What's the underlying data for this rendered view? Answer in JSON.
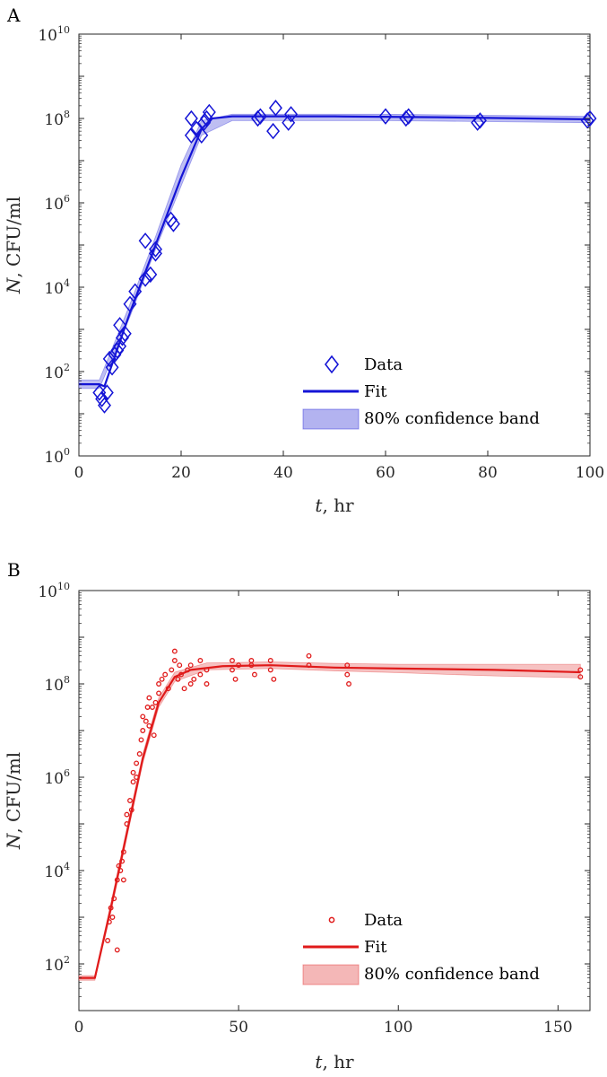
{
  "chart_data": [
    {
      "panel": "A",
      "type": "scatter",
      "color": "#1414d6",
      "band_fill": "#b3b3f0",
      "marker": "diamond",
      "xlabel_var": "t",
      "xlabel_rest": ", hr",
      "ylabel_var": "N",
      "ylabel_rest": ", CFU/ml",
      "xlim": [
        0,
        100
      ],
      "ylim_log10": [
        0,
        10
      ],
      "xticks": [
        0,
        20,
        40,
        60,
        80,
        100
      ],
      "ytick_exponents": [
        0,
        2,
        4,
        6,
        8,
        10
      ],
      "ytick_base": "10",
      "legend": {
        "data": "Data",
        "fit": "Fit",
        "band": "80% confidence band"
      },
      "data_points_log10": [
        [
          4,
          1.5
        ],
        [
          4.5,
          1.35
        ],
        [
          5,
          1.2
        ],
        [
          5.5,
          1.5
        ],
        [
          6,
          2.3
        ],
        [
          6.5,
          2.1
        ],
        [
          7,
          2.4
        ],
        [
          7.5,
          2.5
        ],
        [
          8,
          2.6
        ],
        [
          8,
          3.1
        ],
        [
          8.5,
          2.8
        ],
        [
          9,
          2.9
        ],
        [
          10,
          3.6
        ],
        [
          11,
          3.9
        ],
        [
          13,
          4.2
        ],
        [
          13,
          5.1
        ],
        [
          14,
          4.3
        ],
        [
          15,
          4.8
        ],
        [
          15,
          4.9
        ],
        [
          18,
          5.6
        ],
        [
          18.5,
          5.5
        ],
        [
          22,
          7.6
        ],
        [
          22,
          8.0
        ],
        [
          23,
          7.75
        ],
        [
          24,
          7.6
        ],
        [
          24.5,
          7.9
        ],
        [
          25,
          8.0
        ],
        [
          25.5,
          8.15
        ],
        [
          35,
          8.0
        ],
        [
          35.5,
          8.05
        ],
        [
          38,
          7.7
        ],
        [
          38.5,
          8.25
        ],
        [
          41,
          7.9
        ],
        [
          41.5,
          8.1
        ],
        [
          60,
          8.05
        ],
        [
          64,
          8.0
        ],
        [
          64.5,
          8.05
        ],
        [
          78,
          7.9
        ],
        [
          78.5,
          7.95
        ],
        [
          99.5,
          7.95
        ],
        [
          100,
          8.0
        ]
      ],
      "fit_log10": [
        [
          0,
          1.7
        ],
        [
          4,
          1.7
        ],
        [
          5,
          1.65
        ],
        [
          10,
          3.4
        ],
        [
          15,
          5.0
        ],
        [
          20,
          6.6
        ],
        [
          24,
          7.75
        ],
        [
          26,
          8.0
        ],
        [
          30,
          8.05
        ],
        [
          50,
          8.05
        ],
        [
          70,
          8.03
        ],
        [
          100,
          7.98
        ]
      ],
      "band_log10": [
        [
          0,
          1.6,
          1.8
        ],
        [
          4,
          1.6,
          1.8
        ],
        [
          10,
          3.3,
          3.6
        ],
        [
          15,
          4.9,
          5.2
        ],
        [
          20,
          6.4,
          6.9
        ],
        [
          24,
          7.6,
          7.95
        ],
        [
          30,
          7.95,
          8.1
        ],
        [
          60,
          7.95,
          8.1
        ],
        [
          100,
          7.9,
          8.05
        ]
      ]
    },
    {
      "panel": "B",
      "type": "scatter",
      "color": "#e01a1a",
      "band_fill": "#f4b7b7",
      "marker": "circle",
      "xlabel_var": "t",
      "xlabel_rest": ", hr",
      "ylabel_var": "N",
      "ylabel_rest": ", CFU/ml",
      "xlim": [
        0,
        160
      ],
      "ylim_log10": [
        1,
        10
      ],
      "xticks": [
        0,
        50,
        100,
        150
      ],
      "ytick_exponents": [
        2,
        4,
        6,
        8,
        10
      ],
      "ytick_base": "10",
      "legend": {
        "data": "Data",
        "fit": "Fit",
        "band": "80% confidence band"
      },
      "data_points_log10": [
        [
          9,
          2.5
        ],
        [
          9.5,
          2.9
        ],
        [
          10,
          3.2
        ],
        [
          10.5,
          3.0
        ],
        [
          11,
          3.4
        ],
        [
          12,
          2.3
        ],
        [
          12,
          3.8
        ],
        [
          12.5,
          4.1
        ],
        [
          13,
          4.0
        ],
        [
          13.5,
          4.2
        ],
        [
          14,
          3.8
        ],
        [
          14,
          4.4
        ],
        [
          15,
          5.0
        ],
        [
          15,
          5.2
        ],
        [
          16,
          5.5
        ],
        [
          16.5,
          5.3
        ],
        [
          17,
          5.9
        ],
        [
          17,
          6.1
        ],
        [
          18,
          6.0
        ],
        [
          18,
          6.3
        ],
        [
          19,
          6.5
        ],
        [
          19.5,
          6.8
        ],
        [
          20,
          7.0
        ],
        [
          20,
          7.3
        ],
        [
          21,
          7.2
        ],
        [
          21.5,
          7.5
        ],
        [
          22,
          7.1
        ],
        [
          22,
          7.7
        ],
        [
          23,
          7.5
        ],
        [
          23.5,
          6.9
        ],
        [
          24,
          7.6
        ],
        [
          25,
          7.8
        ],
        [
          25,
          8.0
        ],
        [
          26,
          8.1
        ],
        [
          27,
          8.2
        ],
        [
          28,
          7.9
        ],
        [
          29,
          8.3
        ],
        [
          30,
          8.5
        ],
        [
          30,
          8.7
        ],
        [
          31,
          8.1
        ],
        [
          31.5,
          8.4
        ],
        [
          32,
          8.2
        ],
        [
          33,
          7.9
        ],
        [
          34,
          8.3
        ],
        [
          35,
          8.0
        ],
        [
          35,
          8.4
        ],
        [
          36,
          8.1
        ],
        [
          38,
          8.2
        ],
        [
          38,
          8.5
        ],
        [
          40,
          8.3
        ],
        [
          40,
          8.0
        ],
        [
          48,
          8.3
        ],
        [
          48,
          8.5
        ],
        [
          49,
          8.1
        ],
        [
          50,
          8.4
        ],
        [
          54,
          8.4
        ],
        [
          54,
          8.5
        ],
        [
          55,
          8.2
        ],
        [
          60,
          8.3
        ],
        [
          60,
          8.5
        ],
        [
          61,
          8.1
        ],
        [
          72,
          8.4
        ],
        [
          72,
          8.6
        ],
        [
          84,
          8.2
        ],
        [
          84,
          8.4
        ],
        [
          84.5,
          8.0
        ],
        [
          157,
          8.3
        ],
        [
          157,
          8.15
        ]
      ],
      "fit_log10": [
        [
          0,
          1.7
        ],
        [
          5,
          1.7
        ],
        [
          10,
          3.2
        ],
        [
          15,
          4.8
        ],
        [
          20,
          6.4
        ],
        [
          25,
          7.6
        ],
        [
          30,
          8.15
        ],
        [
          35,
          8.3
        ],
        [
          45,
          8.38
        ],
        [
          60,
          8.4
        ],
        [
          80,
          8.35
        ],
        [
          100,
          8.33
        ],
        [
          130,
          8.3
        ],
        [
          157,
          8.25
        ]
      ],
      "band_log10": [
        [
          0,
          1.65,
          1.75
        ],
        [
          5,
          1.65,
          1.75
        ],
        [
          10,
          3.1,
          3.3
        ],
        [
          15,
          4.7,
          4.9
        ],
        [
          20,
          6.3,
          6.5
        ],
        [
          25,
          7.5,
          7.7
        ],
        [
          30,
          8.05,
          8.25
        ],
        [
          40,
          8.3,
          8.45
        ],
        [
          60,
          8.33,
          8.47
        ],
        [
          80,
          8.28,
          8.44
        ],
        [
          100,
          8.24,
          8.42
        ],
        [
          130,
          8.17,
          8.42
        ],
        [
          157,
          8.13,
          8.42
        ]
      ]
    }
  ]
}
